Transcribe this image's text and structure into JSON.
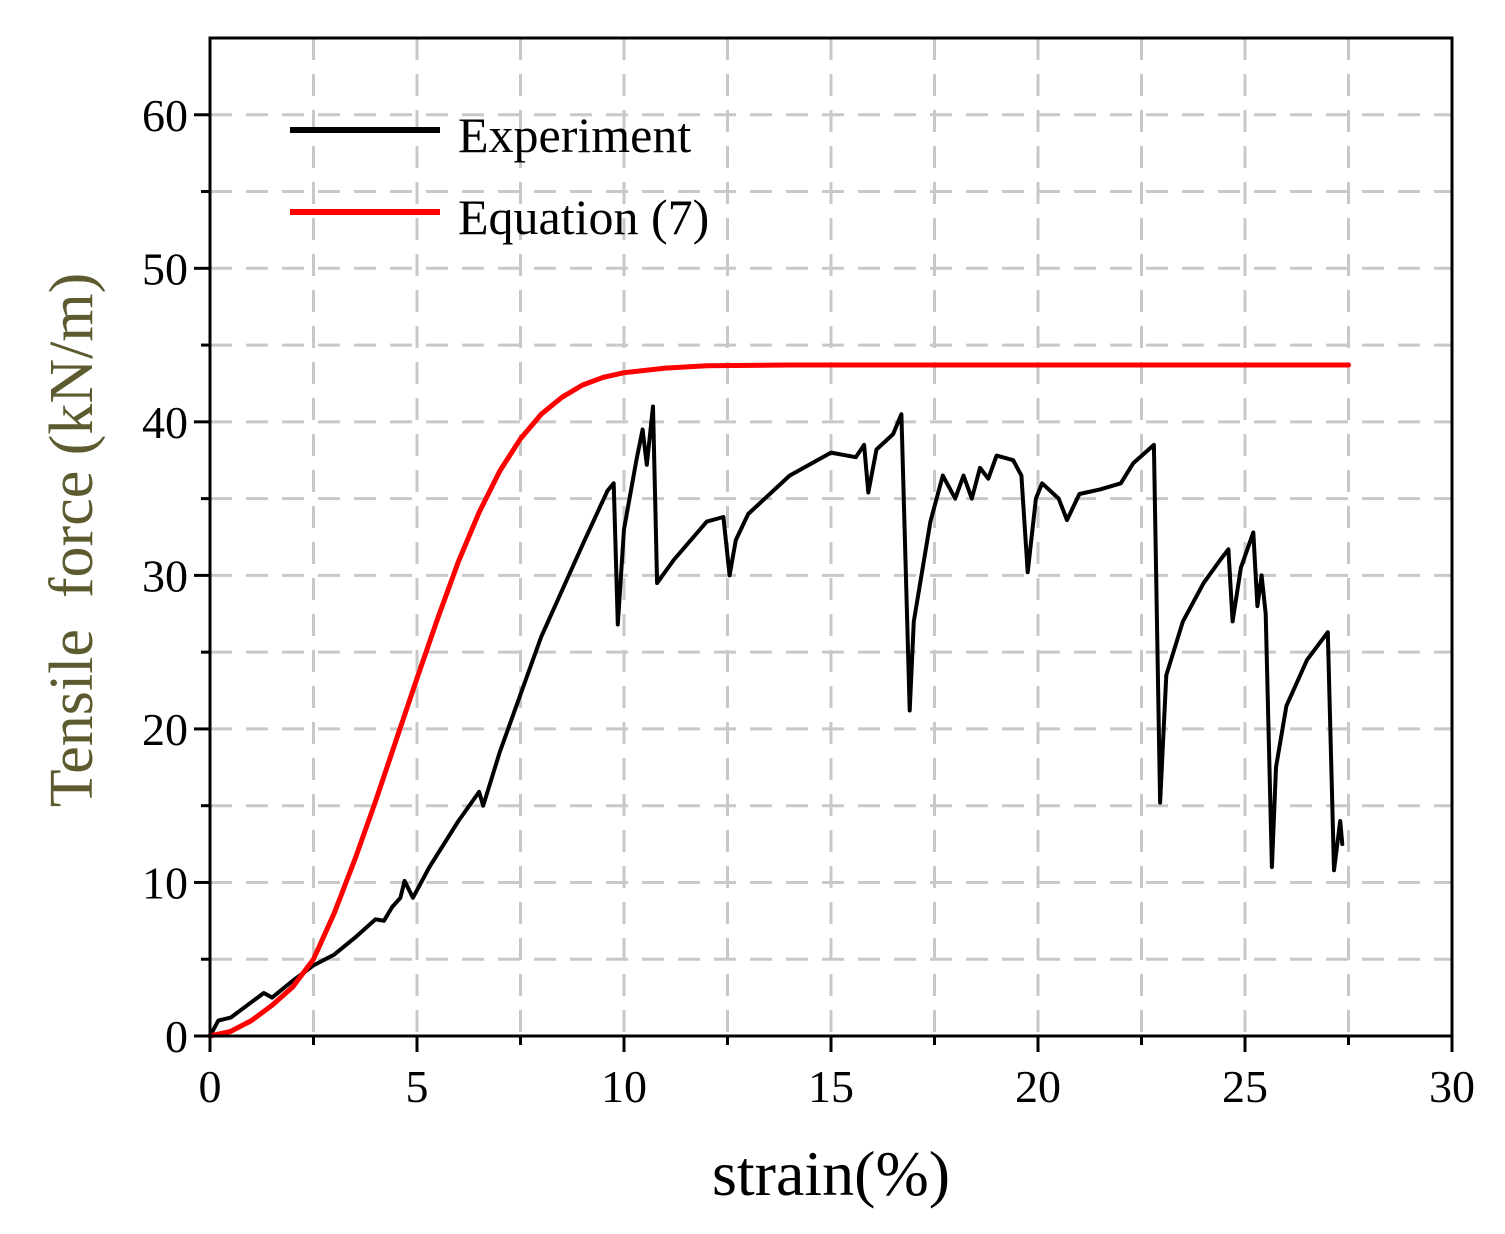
{
  "chart_data": {
    "type": "line",
    "xlabel": "strain(%)",
    "ylabel": "Tensile  force (kN/m)",
    "xlim": [
      0,
      30
    ],
    "ylim": [
      0,
      65
    ],
    "x_ticks": [
      0,
      5,
      10,
      15,
      20,
      25,
      30
    ],
    "x_tick_labels": [
      "0",
      "5",
      "10",
      "15",
      "20",
      "25",
      "30"
    ],
    "y_ticks": [
      0,
      10,
      20,
      30,
      40,
      50,
      60
    ],
    "y_tick_labels": [
      "0",
      "10",
      "20",
      "30",
      "40",
      "50",
      "60"
    ],
    "grid": true,
    "legend_position": "top-left",
    "colors": {
      "experiment": "#000000",
      "equation": "#ff0000",
      "ylabel": "#5c5a2e",
      "grid": "#c8c8c8"
    },
    "series": [
      {
        "name": "Experiment",
        "color": "#000000",
        "points": [
          [
            0,
            0
          ],
          [
            0.2,
            1.0
          ],
          [
            0.5,
            1.2
          ],
          [
            1.0,
            2.2
          ],
          [
            1.3,
            2.8
          ],
          [
            1.5,
            2.5
          ],
          [
            2.0,
            3.6
          ],
          [
            2.5,
            4.6
          ],
          [
            3.0,
            5.3
          ],
          [
            3.5,
            6.4
          ],
          [
            4.0,
            7.6
          ],
          [
            4.2,
            7.5
          ],
          [
            4.4,
            8.4
          ],
          [
            4.6,
            9.0
          ],
          [
            4.7,
            10.1
          ],
          [
            4.9,
            9.0
          ],
          [
            5.3,
            11.0
          ],
          [
            6.0,
            14.0
          ],
          [
            6.5,
            15.9
          ],
          [
            6.6,
            15.0
          ],
          [
            7.0,
            18.5
          ],
          [
            8.0,
            26.0
          ],
          [
            9.0,
            32.0
          ],
          [
            9.6,
            35.5
          ],
          [
            9.75,
            36.0
          ],
          [
            9.85,
            26.8
          ],
          [
            10.0,
            33.0
          ],
          [
            10.3,
            37.5
          ],
          [
            10.45,
            39.5
          ],
          [
            10.55,
            37.2
          ],
          [
            10.7,
            41.0
          ],
          [
            10.8,
            29.5
          ],
          [
            11.2,
            31.0
          ],
          [
            12.0,
            33.5
          ],
          [
            12.4,
            33.8
          ],
          [
            12.55,
            30.0
          ],
          [
            12.7,
            32.3
          ],
          [
            13.0,
            34.0
          ],
          [
            14.0,
            36.5
          ],
          [
            15.0,
            38.0
          ],
          [
            15.6,
            37.7
          ],
          [
            15.8,
            38.5
          ],
          [
            15.9,
            35.4
          ],
          [
            16.1,
            38.2
          ],
          [
            16.5,
            39.2
          ],
          [
            16.7,
            40.5
          ],
          [
            16.9,
            21.2
          ],
          [
            17.0,
            27.0
          ],
          [
            17.4,
            33.5
          ],
          [
            17.7,
            36.5
          ],
          [
            18.0,
            35.0
          ],
          [
            18.2,
            36.5
          ],
          [
            18.4,
            35.0
          ],
          [
            18.6,
            37.0
          ],
          [
            18.8,
            36.3
          ],
          [
            19.0,
            37.8
          ],
          [
            19.4,
            37.5
          ],
          [
            19.6,
            36.5
          ],
          [
            19.75,
            30.2
          ],
          [
            19.95,
            35.0
          ],
          [
            20.1,
            36.0
          ],
          [
            20.5,
            35.0
          ],
          [
            20.7,
            33.6
          ],
          [
            21.0,
            35.3
          ],
          [
            21.5,
            35.6
          ],
          [
            22.0,
            36.0
          ],
          [
            22.3,
            37.3
          ],
          [
            22.8,
            38.5
          ],
          [
            22.95,
            15.2
          ],
          [
            23.1,
            23.5
          ],
          [
            23.5,
            27.0
          ],
          [
            24.0,
            29.5
          ],
          [
            24.4,
            31.0
          ],
          [
            24.6,
            31.7
          ],
          [
            24.7,
            27.0
          ],
          [
            24.9,
            30.5
          ],
          [
            25.2,
            32.8
          ],
          [
            25.3,
            28.0
          ],
          [
            25.4,
            30.0
          ],
          [
            25.5,
            27.5
          ],
          [
            25.65,
            11.0
          ],
          [
            25.75,
            17.5
          ],
          [
            26.0,
            21.5
          ],
          [
            26.5,
            24.5
          ],
          [
            27.0,
            26.3
          ],
          [
            27.15,
            10.8
          ],
          [
            27.3,
            14.0
          ],
          [
            27.35,
            12.5
          ]
        ]
      },
      {
        "name": "Equation (7)",
        "color": "#ff0000",
        "points": [
          [
            0,
            0
          ],
          [
            0.5,
            0.3
          ],
          [
            1.0,
            1.0
          ],
          [
            1.5,
            2.0
          ],
          [
            2.0,
            3.2
          ],
          [
            2.5,
            5.0
          ],
          [
            3.0,
            8.0
          ],
          [
            3.5,
            11.5
          ],
          [
            4.0,
            15.3
          ],
          [
            4.5,
            19.3
          ],
          [
            5.0,
            23.3
          ],
          [
            5.5,
            27.2
          ],
          [
            6.0,
            30.9
          ],
          [
            6.5,
            34.1
          ],
          [
            7.0,
            36.8
          ],
          [
            7.5,
            38.9
          ],
          [
            8.0,
            40.5
          ],
          [
            8.5,
            41.6
          ],
          [
            9.0,
            42.4
          ],
          [
            9.5,
            42.9
          ],
          [
            10.0,
            43.2
          ],
          [
            11.0,
            43.5
          ],
          [
            12.0,
            43.65
          ],
          [
            14.0,
            43.7
          ],
          [
            20.0,
            43.7
          ],
          [
            27.5,
            43.7
          ]
        ]
      }
    ]
  }
}
